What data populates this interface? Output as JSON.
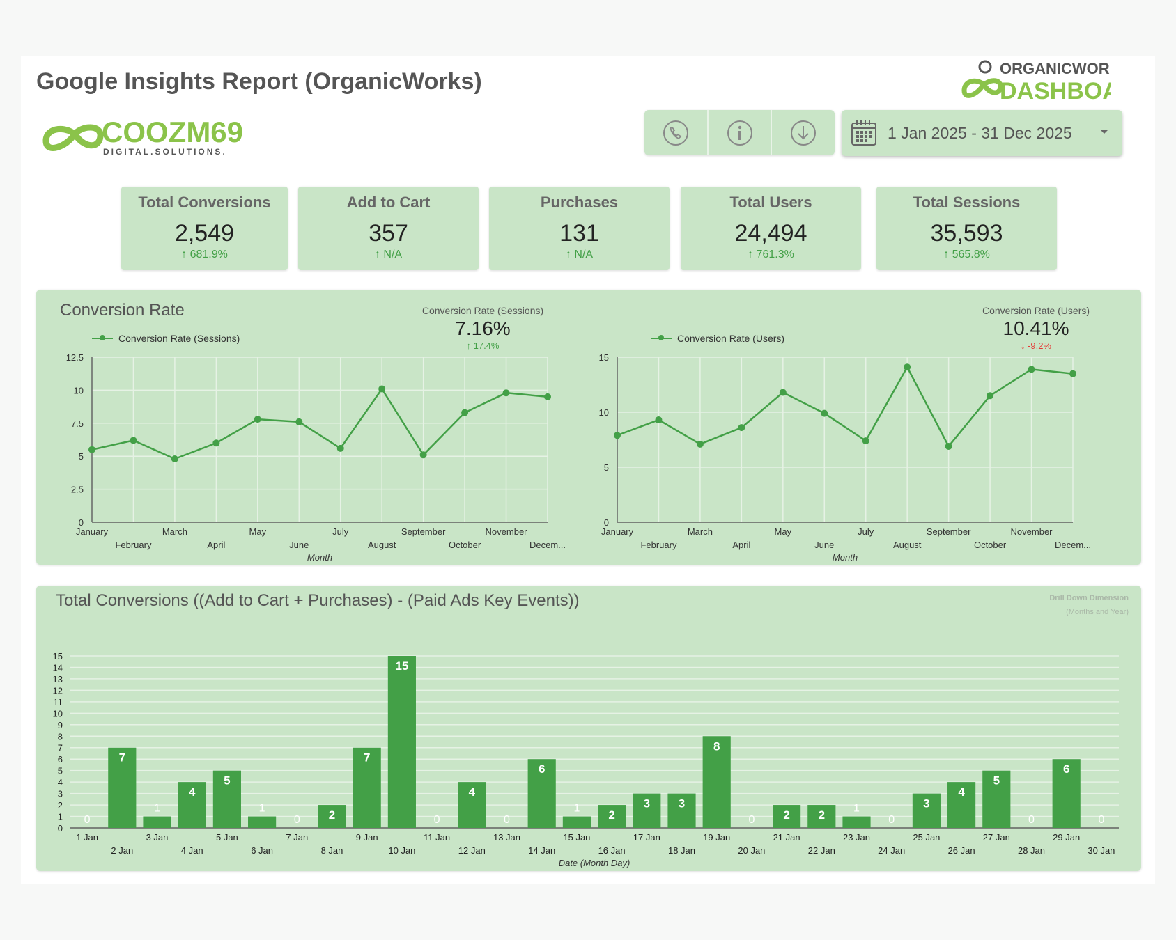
{
  "header": {
    "title": "Google Insights Report (OrganicWorks)",
    "brand_left_name": "COOZM69",
    "brand_left_tagline": "DIGITAL.SOLUTIONS.",
    "brand_right_top": "ORGANICWORKS",
    "brand_right_bottom": "DASHBOARD",
    "date_range": "1 Jan 2025 - 31 Dec 2025",
    "icons": [
      "phone-icon",
      "info-icon",
      "download-icon",
      "calendar-icon",
      "chevron-down-icon"
    ]
  },
  "kpis": [
    {
      "label": "Total Conversions",
      "value": "2,549",
      "delta": "↑ 681.9%"
    },
    {
      "label": "Add to Cart",
      "value": "357",
      "delta": "↑ N/A"
    },
    {
      "label": "Purchases",
      "value": "131",
      "delta": "↑ N/A"
    },
    {
      "label": "Total Users",
      "value": "24,494",
      "delta": "↑ 761.3%"
    },
    {
      "label": "Total Sessions",
      "value": "35,593",
      "delta": "↑ 565.8%"
    }
  ],
  "rate_panel": {
    "title": "Conversion Rate",
    "sessions_score": {
      "label": "Conversion Rate (Sessions)",
      "value": "7.16%",
      "delta": "↑ 17.4%"
    },
    "users_score": {
      "label": "Conversion Rate (Users)",
      "value": "10.41%",
      "delta": "↓ -9.2%"
    },
    "legend_sessions": "Conversion Rate (Sessions)",
    "legend_users": "Conversion Rate (Users)"
  },
  "conv_panel": {
    "title": "Total Conversions ((Add to Cart + Purchases) - (Paid Ads Key Events))",
    "drill_line1": "Drill Down Dimension",
    "drill_line2": "(Months and Year)"
  },
  "colors": {
    "accent": "#43a047",
    "panel": "#c9e5c7",
    "negative": "#e53935"
  },
  "chart_data": [
    {
      "type": "line",
      "title": "Conversion Rate (Sessions)",
      "xlabel": "Month",
      "ylabel": "",
      "categories": [
        "January",
        "February",
        "March",
        "April",
        "May",
        "June",
        "July",
        "August",
        "September",
        "October",
        "November",
        "Decem..."
      ],
      "series": [
        {
          "name": "Conversion Rate (Sessions)",
          "values": [
            5.5,
            6.2,
            4.8,
            6.0,
            7.8,
            7.6,
            5.6,
            10.1,
            5.1,
            8.3,
            9.8,
            9.5
          ]
        }
      ],
      "ylim": [
        0,
        12.5
      ],
      "yticks": [
        "0",
        "2.5",
        "5",
        "7.5",
        "10",
        "12.5"
      ]
    },
    {
      "type": "line",
      "title": "Conversion Rate (Users)",
      "xlabel": "Month",
      "ylabel": "",
      "categories": [
        "January",
        "February",
        "March",
        "April",
        "May",
        "June",
        "July",
        "August",
        "September",
        "October",
        "November",
        "Decem..."
      ],
      "series": [
        {
          "name": "Conversion Rate (Users)",
          "values": [
            7.9,
            9.3,
            7.1,
            8.6,
            11.8,
            9.9,
            7.4,
            14.1,
            6.9,
            11.5,
            13.9,
            13.5
          ]
        }
      ],
      "ylim": [
        0,
        15
      ],
      "yticks": [
        "0",
        "5",
        "10",
        "15"
      ]
    },
    {
      "type": "bar",
      "title": "Total Conversions ((Add to Cart + Purchases) - (Paid Ads Key Events))",
      "xlabel": "Date (Month Day)",
      "ylabel": "",
      "categories": [
        "1 Jan",
        "2 Jan",
        "3 Jan",
        "4 Jan",
        "5 Jan",
        "6 Jan",
        "7 Jan",
        "8 Jan",
        "9 Jan",
        "10 Jan",
        "11 Jan",
        "12 Jan",
        "13 Jan",
        "14 Jan",
        "15 Jan",
        "16 Jan",
        "17 Jan",
        "18 Jan",
        "19 Jan",
        "20 Jan",
        "21 Jan",
        "22 Jan",
        "23 Jan",
        "24 Jan",
        "25 Jan",
        "26 Jan",
        "27 Jan",
        "28 Jan",
        "29 Jan",
        "30 Jan"
      ],
      "values": [
        0,
        7,
        1,
        4,
        5,
        1,
        0,
        2,
        7,
        15,
        0,
        4,
        0,
        6,
        1,
        2,
        3,
        3,
        8,
        0,
        2,
        2,
        1,
        0,
        3,
        4,
        5,
        0,
        6,
        0
      ],
      "ylim": [
        0,
        15
      ],
      "yticks": [
        "0",
        "1",
        "2",
        "3",
        "4",
        "5",
        "6",
        "7",
        "8",
        "9",
        "10",
        "11",
        "12",
        "13",
        "14",
        "15"
      ]
    }
  ]
}
